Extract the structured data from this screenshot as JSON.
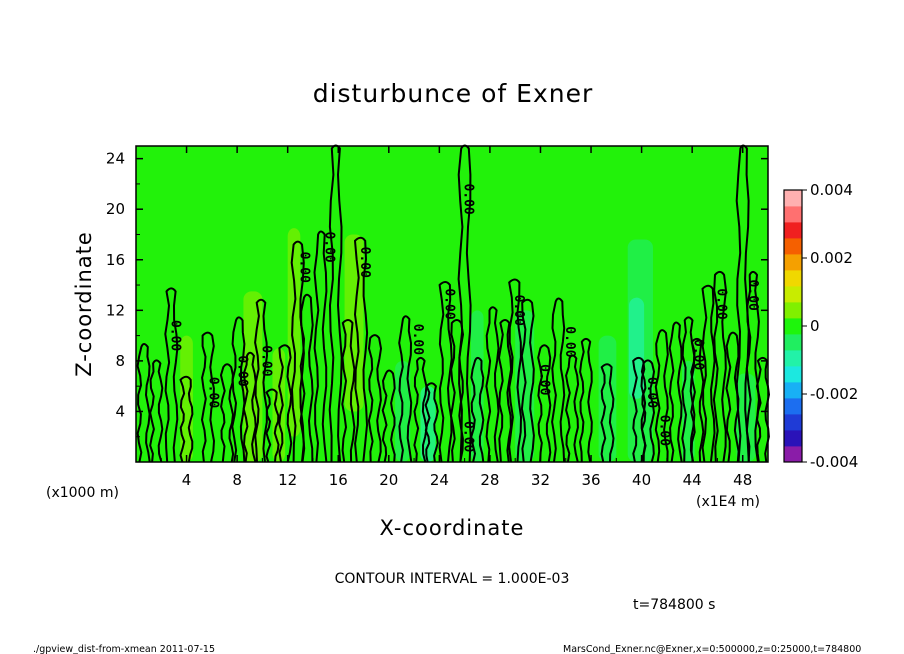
{
  "chart_data": {
    "type": "heatmap",
    "title": "disturbunce of Exner",
    "xlabel": "X-coordinate",
    "ylabel": "Z-coordinate",
    "x_unit_label": "(x1000 m)",
    "x_scale_label": "(x1E4 m)",
    "xlim": [
      0,
      50
    ],
    "ylim": [
      0,
      25
    ],
    "x_ticks": [
      "4",
      "8",
      "12",
      "16",
      "20",
      "24",
      "28",
      "32",
      "36",
      "40",
      "44",
      "48"
    ],
    "y_ticks": [
      "4",
      "8",
      "12",
      "16",
      "20",
      "24"
    ],
    "colorbar": {
      "range": [
        -0.004,
        0.004
      ],
      "tick_labels": [
        "0.004",
        "0.002",
        "0",
        "-0.002",
        "-0.004"
      ],
      "tick_values": [
        0.004,
        0.002,
        0,
        -0.002,
        -0.004
      ],
      "colors": [
        "#8a1ca8",
        "#2a12b8",
        "#1f3bd6",
        "#1c6ef0",
        "#18b0f5",
        "#1ce8e0",
        "#22f2a8",
        "#20ee60",
        "#1ef50c",
        "#80f000",
        "#c8ec00",
        "#f0d800",
        "#f5a000",
        "#f56000",
        "#f02020",
        "#ff7070",
        "#ffb0b0"
      ]
    },
    "background_value": 0,
    "contour_label": "0.00",
    "contour_label_positions": [
      {
        "x": 2.8,
        "z": 10.0
      },
      {
        "x": 5.8,
        "z": 5.5
      },
      {
        "x": 8.1,
        "z": 7.2
      },
      {
        "x": 10.0,
        "z": 8.0
      },
      {
        "x": 13.0,
        "z": 15.4
      },
      {
        "x": 15.0,
        "z": 17.0
      },
      {
        "x": 17.8,
        "z": 15.8
      },
      {
        "x": 22.0,
        "z": 9.7
      },
      {
        "x": 24.5,
        "z": 12.5
      },
      {
        "x": 26.0,
        "z": 20.8
      },
      {
        "x": 26.0,
        "z": 2.0
      },
      {
        "x": 30.0,
        "z": 12.0
      },
      {
        "x": 32.0,
        "z": 6.5
      },
      {
        "x": 34.0,
        "z": 9.5
      },
      {
        "x": 40.5,
        "z": 5.5
      },
      {
        "x": 41.5,
        "z": 2.5
      },
      {
        "x": 44.2,
        "z": 8.5
      },
      {
        "x": 46.0,
        "z": 12.5
      },
      {
        "x": 48.5,
        "z": 13.2
      }
    ],
    "interval_label": "CONTOUR INTERVAL = 1.000E-03"
  },
  "time_label": "t=784800 s",
  "footer": {
    "left": "./gpview_dist-from-xmean  2011-07-15",
    "right": "MarsCond_Exner.nc@Exner,x=0:500000,z=0:25000,t=784800"
  }
}
